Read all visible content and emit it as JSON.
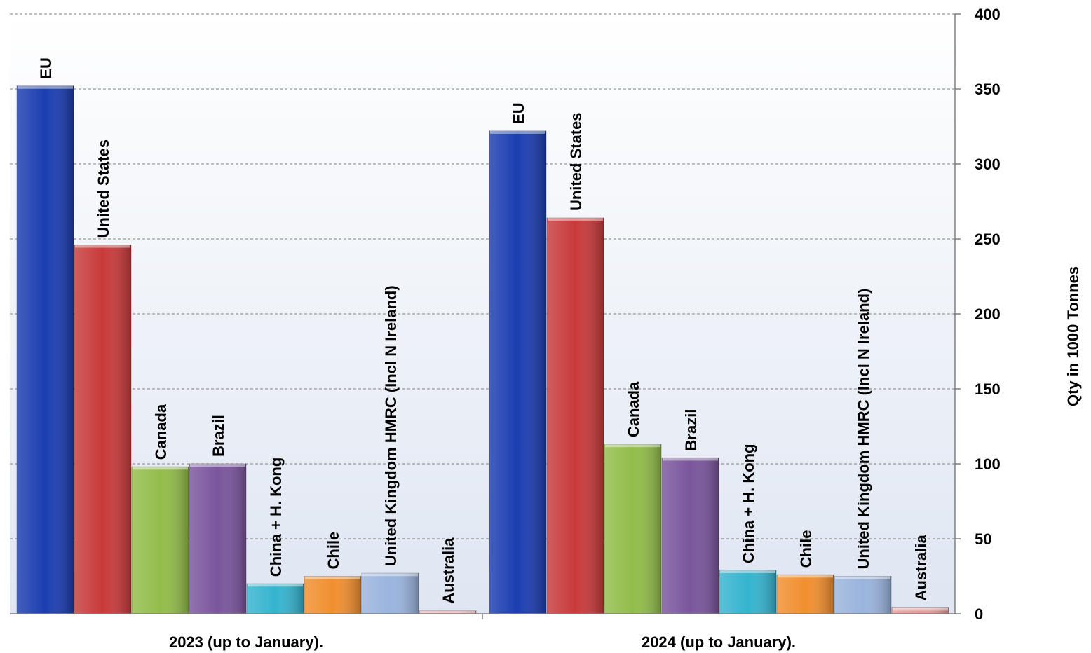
{
  "chart_data": {
    "type": "bar",
    "categories": [
      "2023 (up to January).",
      "2024 (up to January)."
    ],
    "series": [
      {
        "name": "EU",
        "color": "#1b3db0",
        "values": [
          352,
          322
        ]
      },
      {
        "name": "United States",
        "color": "#c83a3a",
        "values": [
          246,
          264
        ]
      },
      {
        "name": "Canada",
        "color": "#92bd4a",
        "values": [
          98,
          113
        ]
      },
      {
        "name": "Brazil",
        "color": "#7a559c",
        "values": [
          100,
          104
        ]
      },
      {
        "name": "China + H. Kong",
        "color": "#35b4cf",
        "values": [
          20,
          29
        ]
      },
      {
        "name": "Chile",
        "color": "#f18f2f",
        "values": [
          25,
          26
        ]
      },
      {
        "name": "United Kingdom HMRC (Incl N Ireland)",
        "color": "#9ab4dd",
        "values": [
          27,
          25
        ]
      },
      {
        "name": "Australia",
        "color": "#e89a9a",
        "values": [
          2,
          4
        ]
      }
    ],
    "ylabel": "Qty in 1000 Tonnes",
    "ylim": [
      0,
      400
    ],
    "yticks": [
      "0",
      "50",
      "100",
      "150",
      "200",
      "250",
      "300",
      "350",
      "400"
    ],
    "y_axis_side": "right",
    "grid": true
  }
}
